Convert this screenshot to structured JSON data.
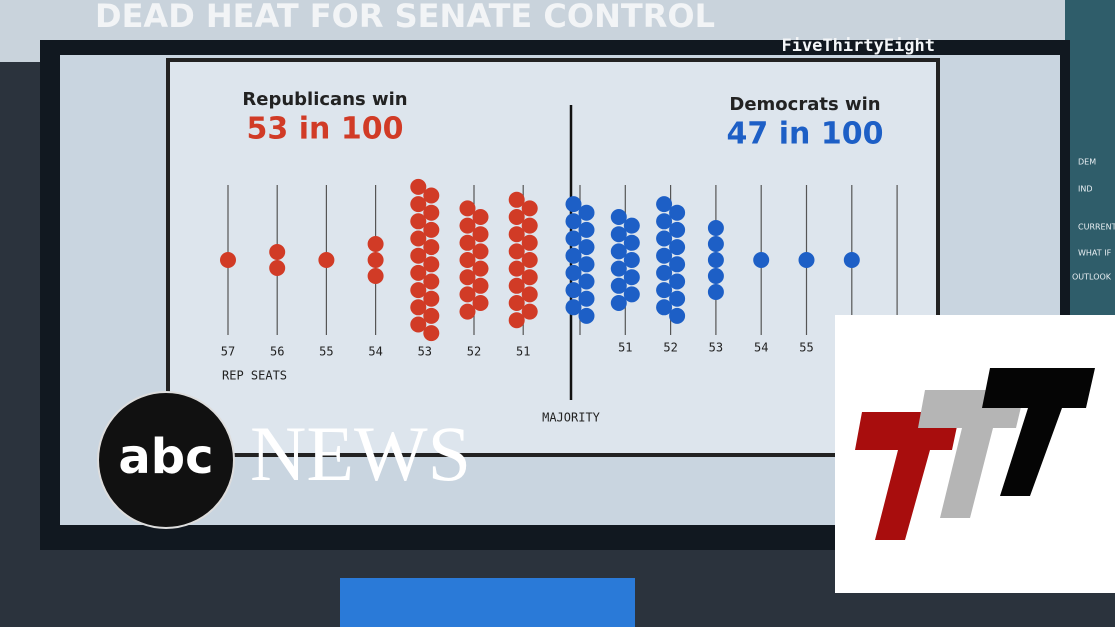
{
  "chart_data": {
    "type": "dotplot",
    "title": "DEAD HEAT FOR SENATE CONTROL",
    "source": "FiveThirtyEight",
    "x_label": "REP SEATS",
    "majority_label": "MAJORITY",
    "series": [
      {
        "name": "Republicans win",
        "summary": "53 in 100",
        "color": "#d13b26",
        "categories": [
          57,
          56,
          55,
          54,
          53,
          52,
          51
        ],
        "values": [
          1,
          2,
          1,
          3,
          18,
          13,
          15
        ]
      },
      {
        "name": "Democrats win",
        "summary": "47 in 100",
        "color": "#1d5fc6",
        "categories": [
          null,
          51,
          52,
          53,
          54,
          55,
          null,
          null
        ],
        "values": [
          14,
          11,
          14,
          5,
          1,
          1,
          1,
          0
        ]
      }
    ]
  },
  "overlay": {
    "network_logo": [
      "abc",
      "NEWS"
    ],
    "side_panel": [
      "DEM",
      "IND",
      "CURRENT",
      "WHAT IF",
      "OUTLOOK"
    ]
  }
}
